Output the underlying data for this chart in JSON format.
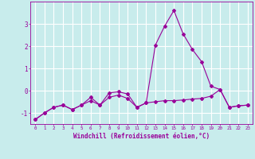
{
  "xlabel": "Windchill (Refroidissement éolien,°C)",
  "background_color": "#c8ecec",
  "line_color": "#990099",
  "grid_color": "#ffffff",
  "x_hours": [
    0,
    1,
    2,
    3,
    4,
    5,
    6,
    7,
    8,
    9,
    10,
    11,
    12,
    13,
    14,
    15,
    16,
    17,
    18,
    19,
    20,
    21,
    22,
    23
  ],
  "line1_y": [
    -1.3,
    -1.0,
    -0.75,
    -0.65,
    -0.85,
    -0.65,
    -0.45,
    -0.65,
    -0.3,
    -0.2,
    -0.35,
    -0.75,
    -0.55,
    -0.5,
    -0.45,
    -0.45,
    -0.42,
    -0.38,
    -0.35,
    -0.25,
    0.05,
    -0.75,
    -0.68,
    -0.65
  ],
  "line2_y": [
    -1.3,
    -1.0,
    -0.75,
    -0.65,
    -0.85,
    -0.65,
    -0.3,
    -0.65,
    -0.1,
    -0.05,
    -0.15,
    -0.75,
    -0.55,
    2.05,
    2.9,
    3.6,
    2.55,
    1.85,
    1.3,
    0.2,
    0.05,
    -0.75,
    -0.68,
    -0.65
  ],
  "ylim": [
    -1.5,
    4.0
  ],
  "yticks": [
    -1,
    0,
    1,
    2,
    3
  ],
  "xlim": [
    -0.5,
    23.5
  ]
}
